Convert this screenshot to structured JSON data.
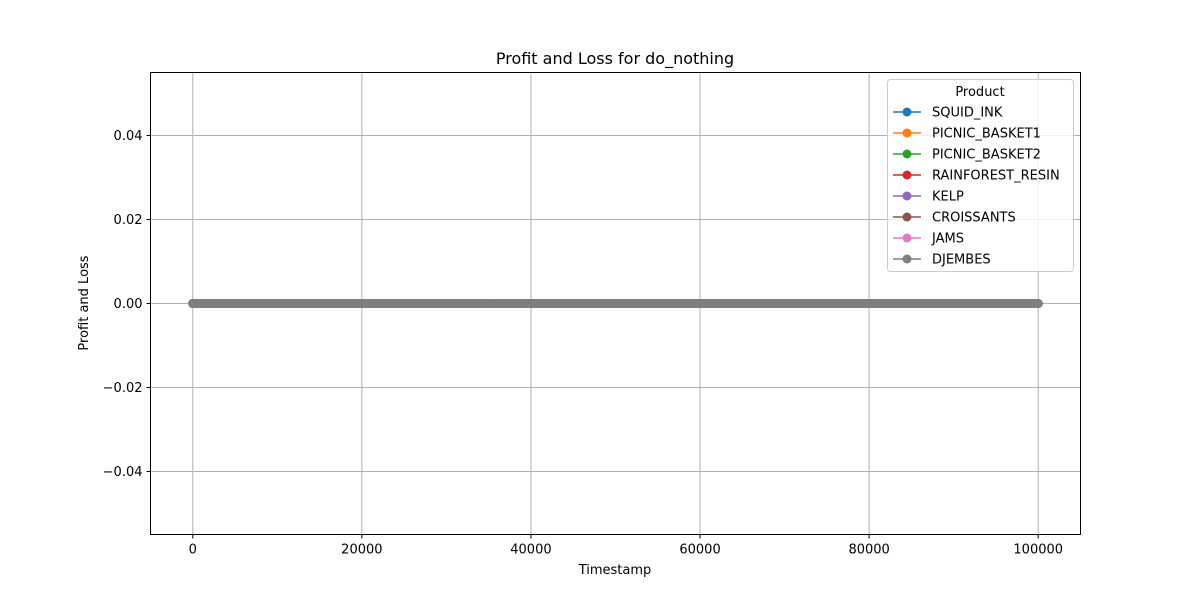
{
  "chart_data": {
    "type": "line",
    "title": "Profit and Loss for do_nothing",
    "xlabel": "Timestamp",
    "ylabel": "Profit and Loss",
    "xlim": [
      -5000,
      105000
    ],
    "ylim": [
      -0.055,
      0.055
    ],
    "xticks": [
      0,
      20000,
      40000,
      60000,
      80000,
      100000
    ],
    "xtick_labels": [
      "0",
      "20000",
      "40000",
      "60000",
      "80000",
      "100000"
    ],
    "yticks": [
      -0.04,
      -0.02,
      0.0,
      0.02,
      0.04
    ],
    "ytick_labels": [
      "−0.04",
      "−0.02",
      "0.00",
      "0.02",
      "0.04"
    ],
    "grid": true,
    "legend": {
      "title": "Product",
      "placement": "upper right"
    },
    "x": {
      "start": 0,
      "end": 100000,
      "step": 100
    },
    "series": [
      {
        "name": "SQUID_INK",
        "color": "#1f77b4",
        "constant_value": 0
      },
      {
        "name": "PICNIC_BASKET1",
        "color": "#ff7f0e",
        "constant_value": 0
      },
      {
        "name": "PICNIC_BASKET2",
        "color": "#2ca02c",
        "constant_value": 0
      },
      {
        "name": "RAINFOREST_RESIN",
        "color": "#d62728",
        "constant_value": 0
      },
      {
        "name": "KELP",
        "color": "#9467bd",
        "constant_value": 0
      },
      {
        "name": "CROISSANTS",
        "color": "#8c564b",
        "constant_value": 0
      },
      {
        "name": "JAMS",
        "color": "#e377c2",
        "constant_value": 0
      },
      {
        "name": "DJEMBES",
        "color": "#7f7f7f",
        "constant_value": 0
      }
    ]
  }
}
